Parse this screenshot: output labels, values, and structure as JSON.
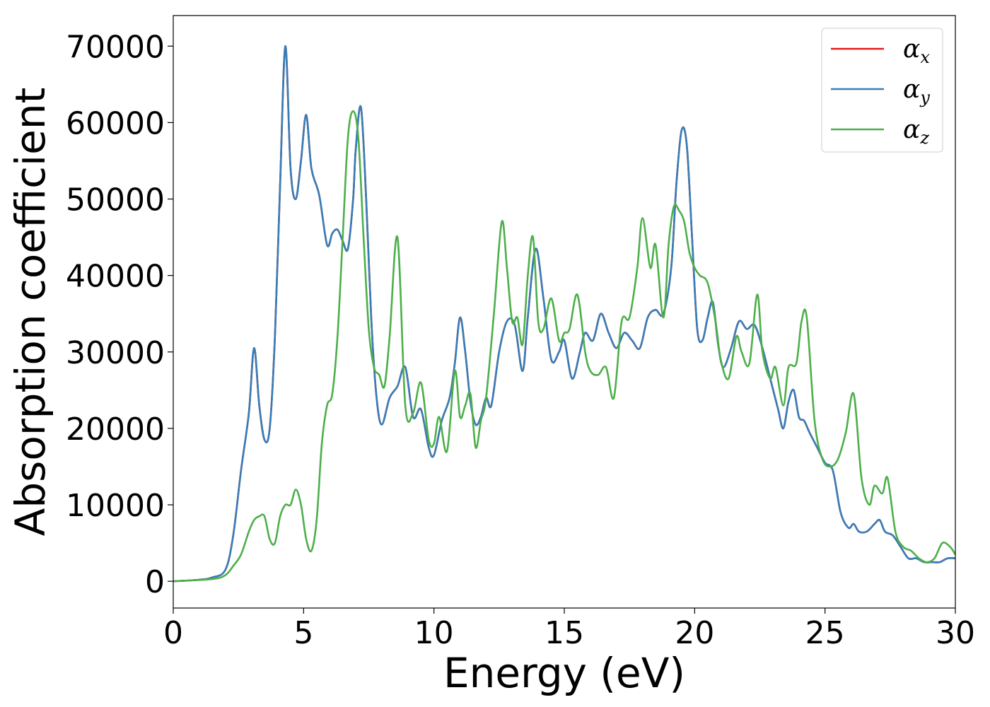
{
  "chart_data": {
    "type": "line",
    "title": "",
    "xlabel": "Energy (eV)",
    "ylabel": "Absorption coefficient",
    "xlim": [
      0,
      30
    ],
    "ylim": [
      -3500,
      74000
    ],
    "xticks": [
      "0",
      "5",
      "10",
      "15",
      "20",
      "25",
      "30"
    ],
    "yticks": [
      "0",
      "10000",
      "20000",
      "30000",
      "40000",
      "50000",
      "60000",
      "70000"
    ],
    "grid": false,
    "legend_position": "top-right",
    "series": [
      {
        "key": "ax",
        "name": "α",
        "sub": "x",
        "color": "#e41a1c",
        "x": [
          0,
          1,
          1.5,
          2,
          2.3,
          2.6,
          2.9,
          3.1,
          3.3,
          3.5,
          3.7,
          3.9,
          4.1,
          4.3,
          4.5,
          4.7,
          4.9,
          5.1,
          5.3,
          5.6,
          5.9,
          6.1,
          6.3,
          6.5,
          6.7,
          6.9,
          7.0,
          7.2,
          7.4,
          7.6,
          7.8,
          8.0,
          8.3,
          8.6,
          8.9,
          9.2,
          9.5,
          9.8,
          10.0,
          10.3,
          10.6,
          10.8,
          11.0,
          11.2,
          11.4,
          11.6,
          11.8,
          12.0,
          12.2,
          12.5,
          12.8,
          13.1,
          13.4,
          13.6,
          13.9,
          14.2,
          14.5,
          14.8,
          15.0,
          15.3,
          15.6,
          15.8,
          16.1,
          16.4,
          16.7,
          17.0,
          17.3,
          17.6,
          17.9,
          18.2,
          18.5,
          18.8,
          19.1,
          19.3,
          19.5,
          19.7,
          19.9,
          20.1,
          20.3,
          20.5,
          20.7,
          20.9,
          21.1,
          21.4,
          21.7,
          22.0,
          22.3,
          22.6,
          22.9,
          23.2,
          23.4,
          23.6,
          23.8,
          24.0,
          24.2,
          24.4,
          24.7,
          25.0,
          25.3,
          25.6,
          25.9,
          26.1,
          26.3,
          26.6,
          26.9,
          27.1,
          27.3,
          27.6,
          27.9,
          28.2,
          28.5,
          28.8,
          29.1,
          29.4,
          29.7,
          30.0
        ],
        "y": [
          0,
          200,
          500,
          1500,
          6000,
          14500,
          22000,
          30500,
          23000,
          18500,
          20000,
          32000,
          52000,
          70000,
          54000,
          50000,
          55000,
          61000,
          54000,
          50500,
          44000,
          45500,
          46000,
          44500,
          43500,
          50000,
          56500,
          62000,
          50000,
          34000,
          24000,
          20500,
          24000,
          25500,
          28000,
          21500,
          22500,
          17500,
          16500,
          21000,
          24000,
          28500,
          34500,
          30000,
          23500,
          20500,
          21500,
          24000,
          23000,
          30000,
          34000,
          33500,
          27500,
          34500,
          43500,
          37000,
          29000,
          30000,
          31500,
          26500,
          30000,
          32500,
          31500,
          35000,
          32500,
          30500,
          32500,
          31500,
          30500,
          34500,
          35500,
          35000,
          41000,
          52000,
          59000,
          57000,
          45000,
          33000,
          31500,
          34500,
          36500,
          31000,
          28000,
          30500,
          34000,
          33000,
          33500,
          30500,
          26500,
          22500,
          20000,
          23500,
          25000,
          21500,
          21000,
          19500,
          17500,
          15500,
          14500,
          9000,
          7000,
          7500,
          6500,
          6500,
          7500,
          8000,
          6500,
          6000,
          4500,
          3000,
          3000,
          2500,
          2500,
          2500,
          3000,
          3000
        ]
      },
      {
        "key": "ay",
        "name": "α",
        "sub": "y",
        "color": "#377eb8",
        "x": [
          0,
          1,
          1.5,
          2,
          2.3,
          2.6,
          2.9,
          3.1,
          3.3,
          3.5,
          3.7,
          3.9,
          4.1,
          4.3,
          4.5,
          4.7,
          4.9,
          5.1,
          5.3,
          5.6,
          5.9,
          6.1,
          6.3,
          6.5,
          6.7,
          6.9,
          7.0,
          7.2,
          7.4,
          7.6,
          7.8,
          8.0,
          8.3,
          8.6,
          8.9,
          9.2,
          9.5,
          9.8,
          10.0,
          10.3,
          10.6,
          10.8,
          11.0,
          11.2,
          11.4,
          11.6,
          11.8,
          12.0,
          12.2,
          12.5,
          12.8,
          13.1,
          13.4,
          13.6,
          13.9,
          14.2,
          14.5,
          14.8,
          15.0,
          15.3,
          15.6,
          15.8,
          16.1,
          16.4,
          16.7,
          17.0,
          17.3,
          17.6,
          17.9,
          18.2,
          18.5,
          18.8,
          19.1,
          19.3,
          19.5,
          19.7,
          19.9,
          20.1,
          20.3,
          20.5,
          20.7,
          20.9,
          21.1,
          21.4,
          21.7,
          22.0,
          22.3,
          22.6,
          22.9,
          23.2,
          23.4,
          23.6,
          23.8,
          24.0,
          24.2,
          24.4,
          24.7,
          25.0,
          25.3,
          25.6,
          25.9,
          26.1,
          26.3,
          26.6,
          26.9,
          27.1,
          27.3,
          27.6,
          27.9,
          28.2,
          28.5,
          28.8,
          29.1,
          29.4,
          29.7,
          30.0
        ],
        "y": [
          0,
          200,
          500,
          1500,
          6000,
          14500,
          22000,
          30500,
          23000,
          18500,
          20000,
          32000,
          52000,
          70000,
          54000,
          50000,
          55000,
          61000,
          54000,
          50500,
          44000,
          45500,
          46000,
          44500,
          43500,
          50000,
          56500,
          62000,
          50000,
          34000,
          24000,
          20500,
          24000,
          25500,
          28000,
          21500,
          22500,
          17500,
          16500,
          21000,
          24000,
          28500,
          34500,
          30000,
          23500,
          20500,
          21500,
          24000,
          23000,
          30000,
          34000,
          33500,
          27500,
          34500,
          43500,
          37000,
          29000,
          30000,
          31500,
          26500,
          30000,
          32500,
          31500,
          35000,
          32500,
          30500,
          32500,
          31500,
          30500,
          34500,
          35500,
          35000,
          41000,
          52000,
          59000,
          57000,
          45000,
          33000,
          31500,
          34500,
          36500,
          31000,
          28000,
          30500,
          34000,
          33000,
          33500,
          30500,
          26500,
          22500,
          20000,
          23500,
          25000,
          21500,
          21000,
          19500,
          17500,
          15500,
          14500,
          9000,
          7000,
          7500,
          6500,
          6500,
          7500,
          8000,
          6500,
          6000,
          4500,
          3000,
          3000,
          2500,
          2500,
          2500,
          3000,
          3000
        ]
      },
      {
        "key": "az",
        "name": "α",
        "sub": "z",
        "color": "#4daf4a",
        "x": [
          0,
          1.5,
          2,
          2.3,
          2.6,
          2.9,
          3.1,
          3.3,
          3.5,
          3.7,
          3.9,
          4.1,
          4.3,
          4.5,
          4.7,
          4.9,
          5.1,
          5.3,
          5.5,
          5.7,
          5.9,
          6.1,
          6.3,
          6.5,
          6.7,
          6.9,
          7.1,
          7.3,
          7.5,
          7.7,
          7.9,
          8.1,
          8.3,
          8.6,
          8.9,
          9.2,
          9.5,
          9.8,
          10.0,
          10.2,
          10.5,
          10.8,
          11.0,
          11.2,
          11.4,
          11.6,
          11.8,
          12.0,
          12.3,
          12.6,
          12.8,
          13.0,
          13.2,
          13.4,
          13.6,
          13.8,
          14.0,
          14.2,
          14.5,
          14.8,
          15.0,
          15.2,
          15.5,
          15.8,
          16.0,
          16.3,
          16.6,
          16.9,
          17.2,
          17.5,
          17.8,
          18.0,
          18.3,
          18.5,
          18.8,
          19.0,
          19.2,
          19.4,
          19.6,
          19.8,
          20.0,
          20.2,
          20.5,
          20.8,
          21.0,
          21.3,
          21.6,
          21.8,
          22.1,
          22.4,
          22.6,
          22.9,
          23.1,
          23.4,
          23.6,
          23.9,
          24.1,
          24.3,
          24.6,
          24.9,
          25.2,
          25.5,
          25.8,
          26.1,
          26.4,
          26.7,
          26.9,
          27.2,
          27.4,
          27.7,
          28.0,
          28.3,
          28.6,
          28.9,
          29.2,
          29.5,
          29.8,
          30.0
        ],
        "y": [
          0,
          300,
          800,
          2000,
          3500,
          6500,
          8000,
          8500,
          8500,
          5500,
          5000,
          8500,
          10000,
          10000,
          12000,
          10000,
          5500,
          4000,
          8000,
          18000,
          23000,
          24500,
          32000,
          45000,
          58000,
          61500,
          58000,
          45000,
          33000,
          28000,
          27000,
          25500,
          32000,
          45000,
          23000,
          22000,
          26000,
          18500,
          18000,
          21500,
          17000,
          27500,
          21500,
          23000,
          24500,
          17500,
          21000,
          24000,
          35000,
          47000,
          41000,
          34000,
          34500,
          31000,
          40000,
          45000,
          34000,
          33000,
          37000,
          31500,
          32500,
          33000,
          37500,
          30000,
          27500,
          27000,
          28000,
          24000,
          34000,
          34500,
          41000,
          47500,
          41000,
          44000,
          34500,
          44000,
          49000,
          48500,
          47000,
          43000,
          41000,
          40000,
          39000,
          34000,
          29000,
          26500,
          32000,
          30000,
          28500,
          37500,
          30000,
          26500,
          28000,
          23000,
          28000,
          28500,
          34000,
          34500,
          21000,
          16000,
          15000,
          16000,
          19500,
          24500,
          13500,
          10000,
          12500,
          11500,
          13500,
          6500,
          4500,
          4000,
          3000,
          2500,
          3000,
          5000,
          4500,
          3500
        ]
      }
    ]
  }
}
